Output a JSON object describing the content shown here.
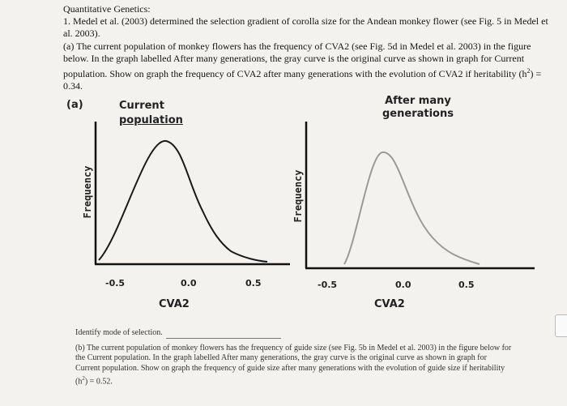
{
  "header": {
    "title": "Quantitative Genetics:",
    "q1": "1. Medel et al. (2003) determined the selection gradient of corolla size for the Andean monkey flower (see Fig. 5 in Medel et al. 2003).",
    "q1a_pre": "(a) The current population of monkey flowers has the frequency of CVA2 (see Fig. 5d in Medel et al. 2003) in the figure below. In the graph labelled After many generations, the gray curve is the original curve as shown in graph for Current population. Show on graph the frequency of CVA2 after many generations with the evolution of CVA2 if heritability (h",
    "sup": "2",
    "q1a_post": ") = 0.34."
  },
  "graph_left": {
    "panel_label": "(a)",
    "title_line1": "Current",
    "title_line2": "population",
    "ylabel": "Frequency",
    "xlabel": "CVA2",
    "ticks": [
      "-0.5",
      "0.0",
      "0.5"
    ]
  },
  "graph_right": {
    "title_line1": "After many",
    "title_line2": "generations",
    "ylabel": "Frequency",
    "xlabel": "CVA2",
    "ticks": [
      "-0.5",
      "0.0",
      "0.5"
    ]
  },
  "footer": {
    "identify": "Identify mode of selection.",
    "q1b_pre": "(b) The current population of monkey flowers has the frequency of guide size (see Fig. 5b in Medel et al. 2003) in the figure below for the Current population. In the graph labelled After many generations, the gray curve is the original curve as shown in graph for Current population. Show on graph the frequency of guide size after many generations with the evolution of guide size if heritability (h",
    "sup": "2",
    "q1b_post": ") = 0.52."
  },
  "colors": {
    "current_curve": "#1a1a1a",
    "original_gray_curve": "#9a9a9a",
    "axes": "#111111"
  }
}
